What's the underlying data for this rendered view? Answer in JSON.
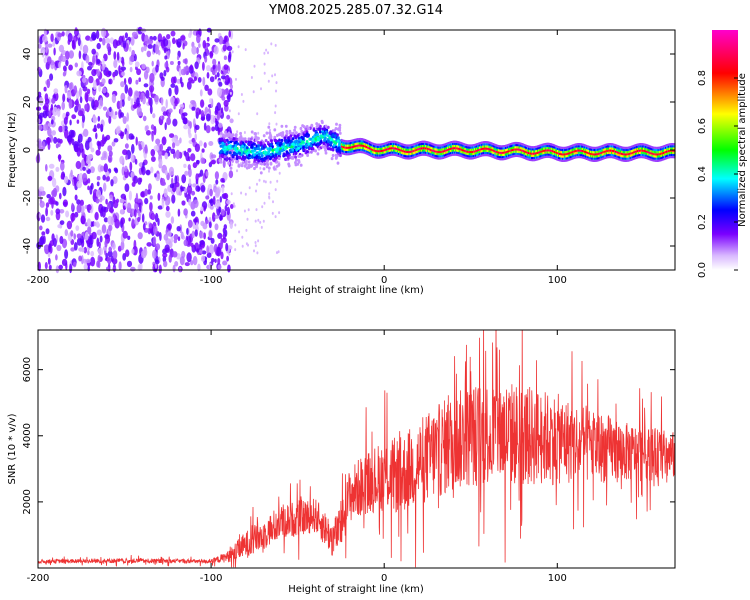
{
  "title": "YM08.2025.285.07.32.G14",
  "colors": {
    "snr_line": "#ee3333",
    "axis": "#000000",
    "background": "#ffffff"
  },
  "chart_data": [
    {
      "type": "heatmap",
      "name": "spectrogram",
      "xlabel": "Height of straight line (km)",
      "ylabel": "Frequency (Hz)",
      "xlim": [
        -200,
        168
      ],
      "ylim": [
        -50,
        50
      ],
      "xticks": [
        -200,
        -100,
        0,
        100
      ],
      "xtick_labels": [
        "-200",
        "-100",
        "0",
        "100"
      ],
      "yticks": [
        -40,
        -20,
        0,
        20,
        40
      ],
      "ytick_labels": [
        "-40",
        "-20",
        "0",
        "20",
        "40"
      ],
      "colorbar": {
        "label": "Normalized spectral amplitude",
        "range": [
          0,
          1
        ],
        "ticks": [
          0.0,
          0.2,
          0.4,
          0.6,
          0.8
        ],
        "tick_labels": [
          "0.0",
          "0.2",
          "0.4",
          "0.6",
          "0.8"
        ]
      },
      "regions": [
        {
          "name": "noise-scatter",
          "x": [
            -200,
            -88
          ],
          "freq": [
            -50,
            50
          ],
          "amplitude": [
            0.0,
            0.25
          ]
        },
        {
          "name": "broad-signal",
          "x": [
            -95,
            -25
          ],
          "freq": [
            -9,
            14
          ],
          "amplitude": [
            0.1,
            0.45
          ]
        },
        {
          "name": "narrow-carrier",
          "x": [
            -25,
            168
          ],
          "freq": [
            -3,
            3
          ],
          "amplitude": [
            0.4,
            1.0
          ]
        }
      ],
      "carrier_center_hz": [
        [
          -95,
          1
        ],
        [
          -70,
          -1
        ],
        [
          -50,
          2
        ],
        [
          -35,
          6
        ],
        [
          -25,
          2
        ],
        [
          0,
          0
        ],
        [
          50,
          0
        ],
        [
          100,
          -1
        ],
        [
          168,
          -1
        ]
      ]
    },
    {
      "type": "line",
      "name": "snr",
      "xlabel": "Height of straight line (km)",
      "ylabel": "SNR (10 * v/v)",
      "xlim": [
        -200,
        168
      ],
      "ylim": [
        0,
        7200
      ],
      "xticks": [
        -200,
        -100,
        0,
        100
      ],
      "xtick_labels": [
        "-200",
        "-100",
        "0",
        "100"
      ],
      "yticks": [
        2000,
        4000,
        6000
      ],
      "ytick_labels": [
        "2000",
        "4000",
        "6000"
      ],
      "envelope": {
        "x": [
          -200,
          -150,
          -100,
          -90,
          -80,
          -70,
          -60,
          -50,
          -40,
          -30,
          -25,
          -20,
          -10,
          0,
          10,
          20,
          30,
          40,
          50,
          60,
          70,
          80,
          100,
          120,
          140,
          168
        ],
        "base": [
          200,
          220,
          200,
          350,
          700,
          1000,
          1400,
          1500,
          1600,
          900,
          1200,
          2200,
          2600,
          2800,
          2800,
          3200,
          3500,
          3800,
          4000,
          4100,
          4100,
          4000,
          3900,
          3700,
          3500,
          3400
        ],
        "spread": [
          100,
          120,
          100,
          300,
          700,
          800,
          900,
          900,
          900,
          900,
          1100,
          1400,
          1600,
          1800,
          2000,
          2200,
          2400,
          2500,
          2600,
          2700,
          2700,
          2600,
          2300,
          1900,
          1500,
          1200
        ]
      }
    }
  ]
}
